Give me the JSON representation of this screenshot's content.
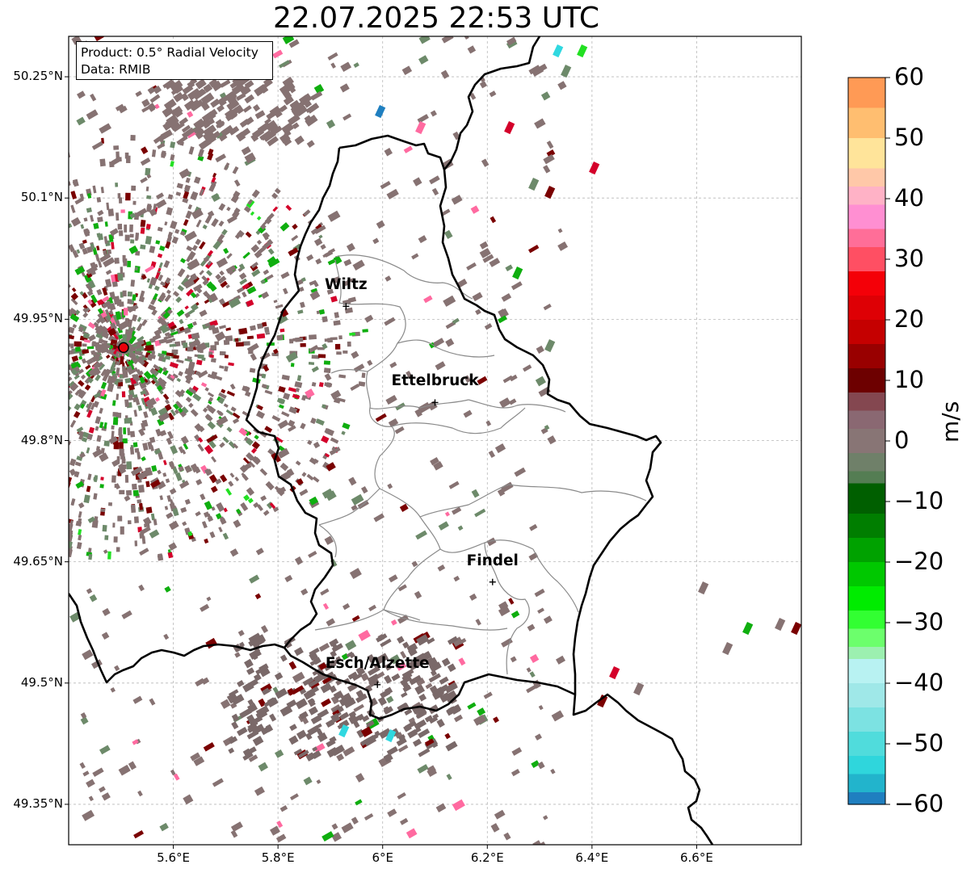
{
  "title": "22.07.2025 22:53 UTC",
  "info": {
    "product": "Product: 0.5° Radial Velocity",
    "data": "Data: RMIB"
  },
  "lat_ticks": [
    "50.25°N",
    "50.1°N",
    "49.95°N",
    "49.8°N",
    "49.65°N",
    "49.5°N",
    "49.35°N"
  ],
  "lon_ticks": [
    "5.6°E",
    "5.8°E",
    "6°E",
    "6.2°E",
    "6.4°E",
    "6.6°E"
  ],
  "cities": [
    {
      "name": "Wiltz",
      "lon": 5.93,
      "lat": 49.966
    },
    {
      "name": "Ettelbruck",
      "lon": 6.1,
      "lat": 49.847
    },
    {
      "name": "Findel",
      "lon": 6.21,
      "lat": 49.625
    },
    {
      "name": "Esch/Alzette",
      "lon": 5.99,
      "lat": 49.498
    }
  ],
  "radar": {
    "lon": 5.505,
    "lat": 49.915,
    "color": "#e8000b"
  },
  "map_extent": {
    "lon": [
      5.4,
      6.8
    ],
    "lat": [
      49.3,
      50.3
    ]
  },
  "colorbar": {
    "unit": "m/s",
    "range": [
      -60,
      60
    ],
    "ticks": [
      "60",
      "50",
      "40",
      "30",
      "20",
      "10",
      "0",
      "−10",
      "−20",
      "−30",
      "−40",
      "−50",
      "−60"
    ],
    "tick_values": [
      60,
      50,
      40,
      30,
      20,
      10,
      0,
      -10,
      -20,
      -30,
      -40,
      -50,
      -60
    ],
    "segments": [
      {
        "from": 55,
        "to": 60,
        "color": "#ff9a55"
      },
      {
        "from": 50,
        "to": 55,
        "color": "#ffbe70"
      },
      {
        "from": 45,
        "to": 50,
        "color": "#ffe49a"
      },
      {
        "from": 42,
        "to": 45,
        "color": "#ffc8a8"
      },
      {
        "from": 39,
        "to": 42,
        "color": "#ffb2c6"
      },
      {
        "from": 35,
        "to": 39,
        "color": "#ff8fd2"
      },
      {
        "from": 32,
        "to": 35,
        "color": "#ff6e98"
      },
      {
        "from": 28,
        "to": 32,
        "color": "#ff4f63"
      },
      {
        "from": 24,
        "to": 28,
        "color": "#f40008"
      },
      {
        "from": 20,
        "to": 24,
        "color": "#de0005"
      },
      {
        "from": 16,
        "to": 20,
        "color": "#c50000"
      },
      {
        "from": 12,
        "to": 16,
        "color": "#990000"
      },
      {
        "from": 8,
        "to": 12,
        "color": "#6d0000"
      },
      {
        "from": 5,
        "to": 8,
        "color": "#844750"
      },
      {
        "from": 2,
        "to": 5,
        "color": "#8a6872"
      },
      {
        "from": -2,
        "to": 2,
        "color": "#887575"
      },
      {
        "from": -5,
        "to": -2,
        "color": "#6f8069"
      },
      {
        "from": -7,
        "to": -5,
        "color": "#547d53"
      },
      {
        "from": -12,
        "to": -7,
        "color": "#005f00"
      },
      {
        "from": -16,
        "to": -12,
        "color": "#007e00"
      },
      {
        "from": -20,
        "to": -16,
        "color": "#00a200"
      },
      {
        "from": -24,
        "to": -20,
        "color": "#00c800"
      },
      {
        "from": -28,
        "to": -24,
        "color": "#00ec00"
      },
      {
        "from": -31,
        "to": -28,
        "color": "#32ff32"
      },
      {
        "from": -34,
        "to": -31,
        "color": "#6cff6c"
      },
      {
        "from": -36,
        "to": -34,
        "color": "#9cf0b0"
      },
      {
        "from": -40,
        "to": -36,
        "color": "#b8f2f2"
      },
      {
        "from": -44,
        "to": -40,
        "color": "#9fe8e8"
      },
      {
        "from": -48,
        "to": -44,
        "color": "#7ce2e2"
      },
      {
        "from": -52,
        "to": -48,
        "color": "#50dcdc"
      },
      {
        "from": -55,
        "to": -52,
        "color": "#2fd6dc"
      },
      {
        "from": -58,
        "to": -55,
        "color": "#22b4cc"
      },
      {
        "from": -60,
        "to": -58,
        "color": "#1f7fc0"
      }
    ]
  },
  "echo_colors": {
    "ground": "#867272",
    "ground_dark": "#7a6969",
    "green_gray": "#6d8a6a",
    "green": "#0fae0f",
    "bright_green": "#22e022",
    "dark_red": "#7a0000",
    "red": "#d4002a",
    "pink": "#ff6aa0",
    "cyan": "#30d8e0",
    "blue": "#1f7fc0"
  }
}
